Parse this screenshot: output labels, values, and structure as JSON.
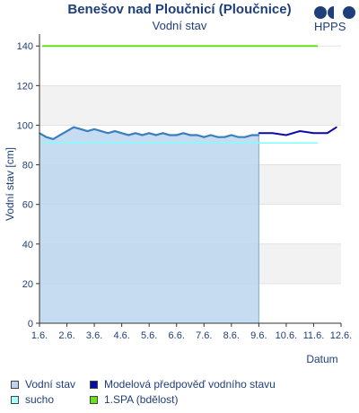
{
  "header": {
    "title": "Benešov nad Ploučnicí (Ploučnice)",
    "subtitle": "Vodní stav",
    "logo_text": "HPPS"
  },
  "chart_data": {
    "type": "line",
    "title": "Benešov nad Ploučnicí (Ploučnice)",
    "subtitle": "Vodní stav",
    "xlabel": "Datum",
    "ylabel": "Vodní stav [cm]",
    "ylim": [
      0,
      146
    ],
    "yticks": [
      0,
      20,
      40,
      60,
      80,
      100,
      120,
      140
    ],
    "xlim": [
      "2024-06-01",
      "2024-06-12"
    ],
    "xticks": [
      "1.6.",
      "2.6.",
      "3.6.",
      "4.6.",
      "5.6.",
      "6.6.",
      "7.6.",
      "8.6.",
      "9.6.",
      "10.6.",
      "11.6.",
      "12.6."
    ],
    "grid": true,
    "series": [
      {
        "name": "Vodní stav",
        "color": "#3a7fc0",
        "x": [
          "2024-06-01T00:00",
          "2024-06-01T06:00",
          "2024-06-01T12:00",
          "2024-06-01T18:00",
          "2024-06-02T00:00",
          "2024-06-02T06:00",
          "2024-06-02T12:00",
          "2024-06-02T18:00",
          "2024-06-03T00:00",
          "2024-06-03T06:00",
          "2024-06-03T12:00",
          "2024-06-03T18:00",
          "2024-06-04T00:00",
          "2024-06-04T06:00",
          "2024-06-04T12:00",
          "2024-06-04T18:00",
          "2024-06-05T00:00",
          "2024-06-05T06:00",
          "2024-06-05T12:00",
          "2024-06-05T18:00",
          "2024-06-06T00:00",
          "2024-06-06T06:00",
          "2024-06-06T12:00",
          "2024-06-06T18:00",
          "2024-06-07T00:00",
          "2024-06-07T06:00",
          "2024-06-07T12:00",
          "2024-06-07T18:00",
          "2024-06-08T00:00",
          "2024-06-08T06:00",
          "2024-06-08T12:00",
          "2024-06-08T18:00",
          "2024-06-09T00:00"
        ],
        "values": [
          96,
          94,
          93,
          95,
          97,
          99,
          98,
          97,
          98,
          97,
          96,
          97,
          96,
          95,
          96,
          95,
          96,
          95,
          96,
          95,
          95,
          96,
          95,
          95,
          94,
          95,
          94,
          94,
          95,
          94,
          94,
          95,
          95
        ]
      },
      {
        "name": "Modelová předpověď vodního stavu",
        "color": "#0a0aa8",
        "x": [
          "2024-06-09T00:00",
          "2024-06-09T12:00",
          "2024-06-10T00:00",
          "2024-06-10T12:00",
          "2024-06-11T00:00",
          "2024-06-11T12:00",
          "2024-06-11T20:00"
        ],
        "values": [
          96,
          96,
          95,
          97,
          96,
          96,
          99
        ]
      }
    ],
    "thresholds": [
      {
        "name": "sucho",
        "value": 91,
        "color": "#80ffff"
      },
      {
        "name": "1.SPA (bdělost)",
        "value": 140,
        "color": "#66e01a"
      }
    ],
    "observed_area_end": "2024-06-09T00:00",
    "legend": [
      {
        "label": "Vodní stav",
        "color": "#bcd6ef"
      },
      {
        "label": "Modelová předpověď vodního stavu",
        "color": "#0a0aa8"
      },
      {
        "label": "sucho",
        "color": "#a8ffff"
      },
      {
        "label": "1.SPA (bdělost)",
        "color": "#66e01a"
      }
    ]
  }
}
